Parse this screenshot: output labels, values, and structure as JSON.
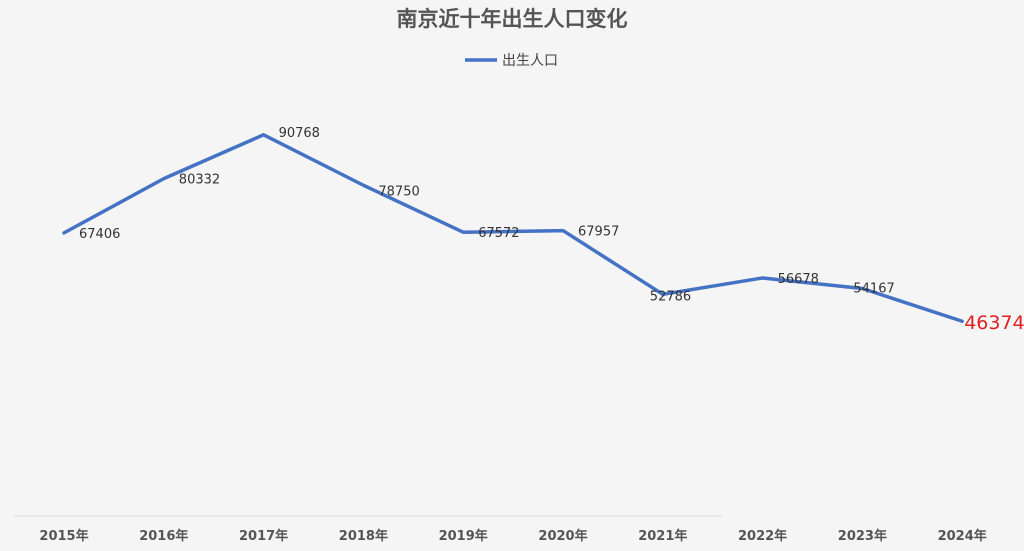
{
  "chart_data": {
    "type": "line",
    "title": "南京近十年出生人口变化",
    "xlabel": "",
    "ylabel": "",
    "categories": [
      "2015年",
      "2016年",
      "2017年",
      "2018年",
      "2019年",
      "2020年",
      "2021年",
      "2022年",
      "2023年",
      "2024年"
    ],
    "series": [
      {
        "name": "出生人口",
        "values": [
          67406,
          80332,
          90768,
          78750,
          67572,
          67957,
          52786,
          56678,
          54167,
          46374
        ]
      }
    ],
    "ylim": [
      0,
      100000
    ],
    "grid": false,
    "legend_position": "top-center",
    "colors": {
      "line": "#4472c4",
      "label": "#333333",
      "highlight_label": "#e02020",
      "axis": "#d9d9d9",
      "background": "#f5f5f5"
    },
    "highlighted_point": "2024年"
  }
}
